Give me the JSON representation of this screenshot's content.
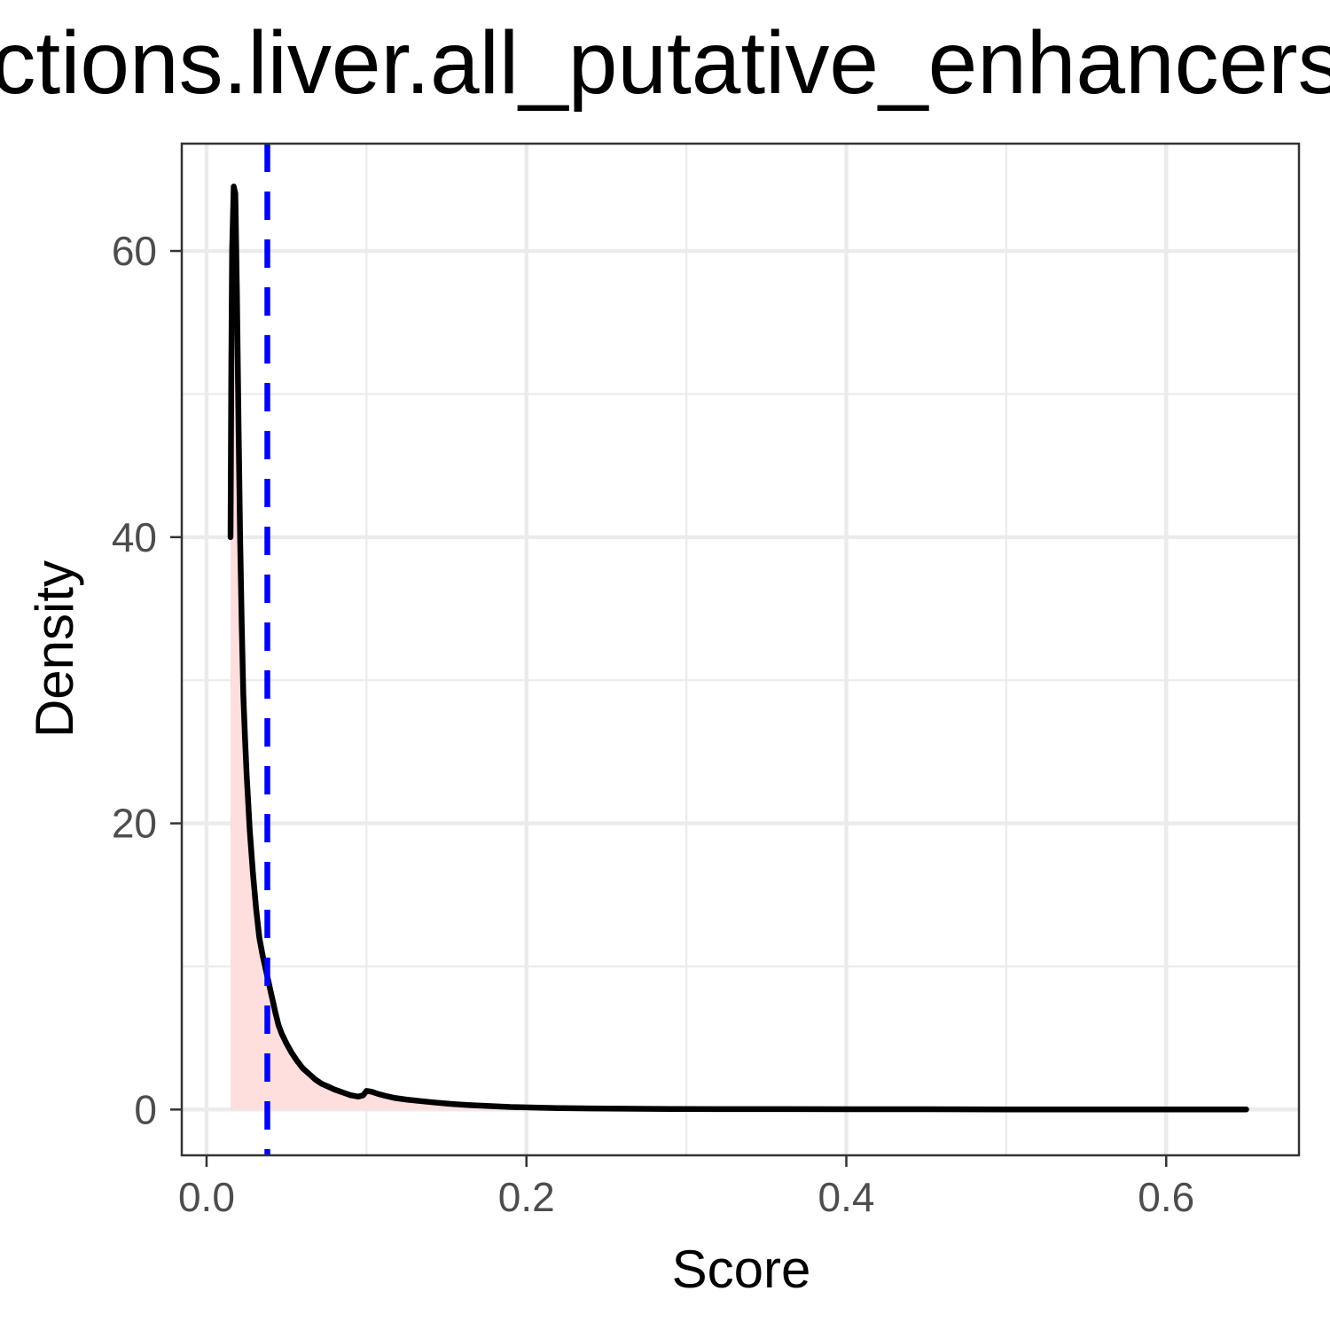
{
  "chart_data": {
    "type": "area",
    "title": "ctions.liver.all_putative_enhancers",
    "xlabel": "Score",
    "ylabel": "Density",
    "xlim": [
      -0.0155,
      0.683
    ],
    "ylim": [
      -3.2,
      67.5
    ],
    "x_ticks": [
      0.0,
      0.2,
      0.4,
      0.6
    ],
    "x_tick_labels": [
      "0.0",
      "0.2",
      "0.4",
      "0.6"
    ],
    "x_minor_ticks": [
      0.1,
      0.3,
      0.5
    ],
    "y_ticks": [
      0,
      20,
      40,
      60
    ],
    "y_tick_labels": [
      "0",
      "20",
      "40",
      "60"
    ],
    "y_minor_ticks": [
      10,
      30,
      50
    ],
    "grid": true,
    "legend": "none",
    "colors": {
      "density_line": "#000000",
      "density_fill": "#ffdede",
      "reference_line": "#0000ff",
      "grid": "#ebebeb",
      "panel_border": "#333333",
      "tick_label": "#4d4d4d"
    },
    "series": [
      {
        "x": [
          0.015,
          0.0155,
          0.016,
          0.017,
          0.018,
          0.019,
          0.02,
          0.021,
          0.022,
          0.023,
          0.024,
          0.025,
          0.027,
          0.029,
          0.031,
          0.033,
          0.035,
          0.037,
          0.039,
          0.041,
          0.043,
          0.045,
          0.047,
          0.05,
          0.053,
          0.056,
          0.06,
          0.064,
          0.068,
          0.072,
          0.076,
          0.08,
          0.085,
          0.09,
          0.095,
          0.098,
          0.1,
          0.103,
          0.107,
          0.112,
          0.118,
          0.125,
          0.133,
          0.142,
          0.152,
          0.163,
          0.175,
          0.19,
          0.205,
          0.22,
          0.24,
          0.26,
          0.29,
          0.32,
          0.35,
          0.4,
          0.45,
          0.5,
          0.55,
          0.6,
          0.65
        ],
        "y": [
          40.0,
          52.0,
          60.0,
          64.5,
          64.0,
          57.0,
          48.0,
          40.0,
          34.0,
          29.0,
          26.0,
          23.5,
          19.5,
          16.5,
          14.0,
          12.0,
          10.8,
          9.8,
          8.8,
          7.8,
          6.8,
          5.9,
          5.3,
          4.6,
          4.0,
          3.5,
          2.9,
          2.5,
          2.1,
          1.8,
          1.6,
          1.4,
          1.2,
          1.0,
          0.9,
          1.0,
          1.3,
          1.25,
          1.1,
          0.95,
          0.8,
          0.7,
          0.6,
          0.5,
          0.4,
          0.32,
          0.25,
          0.18,
          0.14,
          0.1,
          0.08,
          0.06,
          0.04,
          0.03,
          0.03,
          0.02,
          0.02,
          0.01,
          0.01,
          0.01,
          0.01
        ]
      }
    ],
    "reference_line": {
      "x": 0.038,
      "style": "dashed"
    }
  }
}
